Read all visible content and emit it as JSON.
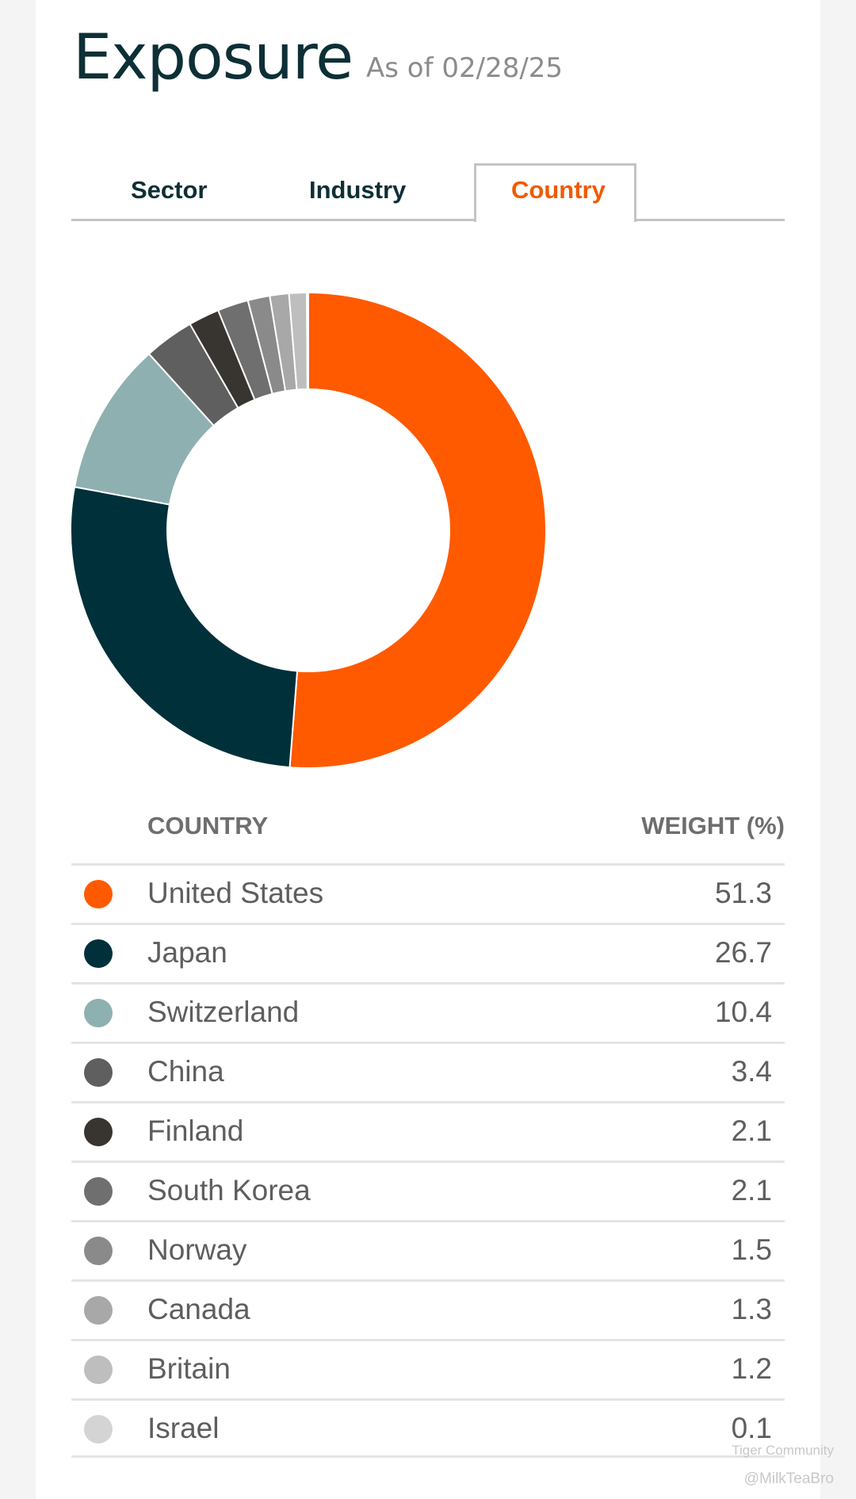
{
  "header": {
    "title": "Exposure",
    "as_of": "As of 02/28/25"
  },
  "tabs": [
    {
      "label": "Sector",
      "active": false
    },
    {
      "label": "Industry",
      "active": false
    },
    {
      "label": "Country",
      "active": true
    }
  ],
  "table": {
    "col_country": "COUNTRY",
    "col_weight": "WEIGHT (%)"
  },
  "chart_data": {
    "type": "pie",
    "variant": "donut",
    "start": "top, clockwise",
    "categories": [
      "United States",
      "Japan",
      "Switzerland",
      "China",
      "Finland",
      "South Korea",
      "Norway",
      "Canada",
      "Britain",
      "Israel"
    ],
    "values": [
      51.3,
      26.7,
      10.4,
      3.4,
      2.1,
      2.1,
      1.5,
      1.3,
      1.2,
      0.1
    ],
    "labels": [
      "51.3",
      "26.7",
      "10.4",
      "3.4",
      "2.1",
      "2.1",
      "1.5",
      "1.3",
      "1.2",
      "0.1"
    ],
    "colors": [
      "#ff5a00",
      "#00303a",
      "#8fb0b0",
      "#5f5f5f",
      "#38342f",
      "#6f6f6f",
      "#8a8a8a",
      "#a8a8a8",
      "#bebebe",
      "#d4d4d4"
    ]
  },
  "watermark": {
    "brand": "Tiger Community",
    "handle": "@MilkTeaBro"
  }
}
